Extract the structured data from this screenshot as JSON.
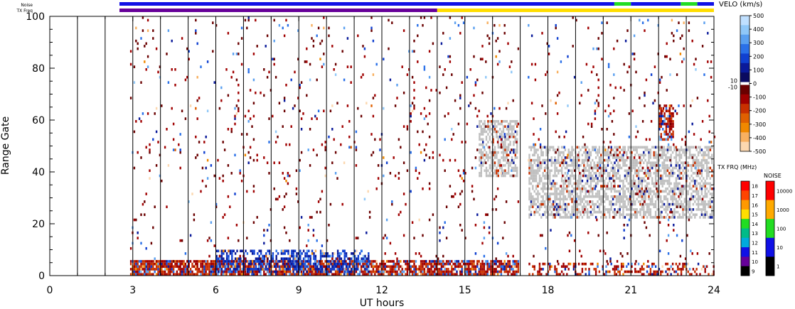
{
  "chart_data": {
    "type": "scatter",
    "xlabel": "UT hours",
    "ylabel": "Range Gate",
    "xlim": [
      0,
      24
    ],
    "ylim": [
      0,
      100
    ],
    "x_ticks": [
      0,
      3,
      6,
      9,
      12,
      15,
      18,
      21,
      24
    ],
    "x_tick_labels": [
      "0",
      "3",
      "6",
      "9",
      "12",
      "15",
      "18",
      "21",
      "24"
    ],
    "y_ticks": [
      0,
      20,
      40,
      60,
      80,
      100
    ],
    "y_tick_labels": [
      "0",
      "20",
      "40",
      "60",
      "80",
      "100"
    ],
    "scan_boundaries_ut": [
      1,
      2,
      3,
      4,
      5,
      6,
      7,
      8,
      9,
      10,
      11,
      12,
      13,
      14,
      15,
      16,
      17,
      18,
      19,
      20,
      21,
      22,
      23
    ],
    "data_gap_ut": [
      16.95,
      17.25
    ],
    "ground_scatter_color": "#c0c0c0",
    "status_bars": {
      "noise_label": "Noise",
      "txfreq_label": "TX Freq",
      "noise_segments": [
        {
          "from": 2.6,
          "to": 20.4,
          "value": "10-100",
          "color": "#1010e6"
        },
        {
          "from": 20.4,
          "to": 21.0,
          "value": "100-1000",
          "color": "#22dd22"
        },
        {
          "from": 21.0,
          "to": 22.8,
          "value": "10-100",
          "color": "#1010e6"
        },
        {
          "from": 22.8,
          "to": 23.4,
          "value": "100-1000",
          "color": "#22dd22"
        },
        {
          "from": 23.4,
          "to": 24.0,
          "value": "10-100",
          "color": "#1010e6"
        }
      ],
      "txfreq_segments": [
        {
          "from": 2.6,
          "to": 14.0,
          "value_mhz": 10,
          "color": "#660099"
        },
        {
          "from": 14.0,
          "to": 24.0,
          "value_mhz": 15,
          "color": "#ffdd00"
        }
      ]
    },
    "velocity_colorbar": {
      "title": "VELO (km/s)",
      "tick_labels": [
        "500",
        "400",
        "300",
        "200",
        "100",
        "0",
        "-100",
        "-200",
        "-300",
        "-400",
        "-500"
      ],
      "inner_labels": [
        "10",
        "-10"
      ],
      "range": [
        -500,
        500
      ],
      "positive_colors": [
        "#0a0a60",
        "#0a1a9a",
        "#1040d0",
        "#2a70e8",
        "#5aa0f0",
        "#90c8f8",
        "#c0e0ff"
      ],
      "negative_colors": [
        "#6a0000",
        "#a00000",
        "#c83000",
        "#e06000",
        "#f08800",
        "#f8b060",
        "#fcd8b0"
      ]
    },
    "txfreq_colorbar": {
      "title": "TX FRQ (MHz)",
      "tick_labels": [
        "18",
        "17",
        "16",
        "15",
        "14",
        "13",
        "12",
        "11",
        "10",
        "9"
      ],
      "colors": [
        "#ff0000",
        "#ff4400",
        "#ff9900",
        "#ffdd00",
        "#22dd22",
        "#00bb88",
        "#00aadd",
        "#1010e6",
        "#660099",
        "#000000"
      ]
    },
    "noise_colorbar": {
      "title": "NOISE",
      "tick_labels": [
        "10000",
        "1000",
        "100",
        "10",
        "1"
      ],
      "colors": [
        "#ff0000",
        "#ffaa00",
        "#22dd22",
        "#1010e6",
        "#000000"
      ]
    },
    "scatter_regions": [
      {
        "desc": "near range dense band",
        "x": [
          2.9,
          16.9
        ],
        "y": [
          0,
          6
        ],
        "dominant_velocity": -150,
        "density": 0.85
      },
      {
        "desc": "near range dense band",
        "x": [
          17.3,
          24.0
        ],
        "y": [
          0,
          5
        ],
        "dominant_velocity": -150,
        "density": 0.35
      },
      {
        "desc": "positive flow near range",
        "x": [
          6.0,
          11.5
        ],
        "y": [
          1,
          10
        ],
        "dominant_velocity": 150,
        "density": 0.5
      },
      {
        "desc": "ground scatter",
        "x": [
          15.5,
          16.9
        ],
        "y": [
          38,
          60
        ],
        "dominant_velocity": 0,
        "density": 0.6
      },
      {
        "desc": "ground scatter",
        "x": [
          17.3,
          24.0
        ],
        "y": [
          22,
          50
        ],
        "dominant_velocity": 0,
        "density": 0.6
      },
      {
        "desc": "ionospheric patch",
        "x": [
          22.0,
          22.5
        ],
        "y": [
          52,
          66
        ],
        "dominant_velocity": -150,
        "density": 0.7
      },
      {
        "desc": "sparse scatter",
        "x": [
          2.9,
          24.0
        ],
        "y": [
          5,
          100
        ],
        "dominant_velocity": -80,
        "density": 0.03
      }
    ]
  }
}
